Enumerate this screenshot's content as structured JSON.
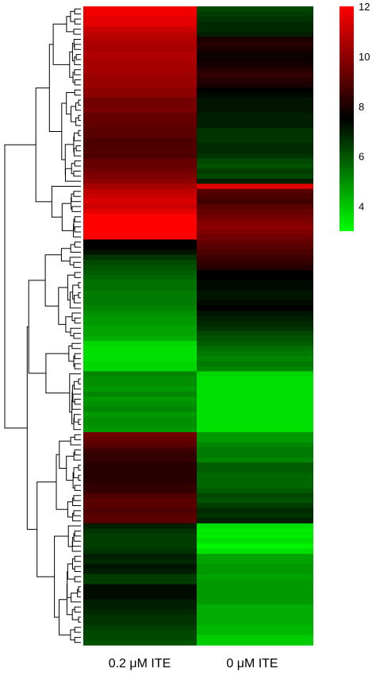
{
  "chart_data": {
    "type": "heatmap",
    "title": "",
    "xlabel": "",
    "ylabel": "",
    "columns": [
      "0.2 μM ITE",
      "0 μM ITE"
    ],
    "row_clustering": "hierarchical dendrogram shown on left",
    "color_scale": {
      "min": 3,
      "max": 12,
      "ticks": [
        4,
        6,
        8,
        10,
        12
      ],
      "low_color": "#00ff00",
      "mid_color": "#000000",
      "high_color": "#ff0000",
      "mid_value": 8
    },
    "rows": [
      [
        11.8,
        6.6
      ],
      [
        11.8,
        6.8
      ],
      [
        11.6,
        7.0
      ],
      [
        11.6,
        7.2
      ],
      [
        11.2,
        7.2
      ],
      [
        11.0,
        7.4
      ],
      [
        10.8,
        8.4
      ],
      [
        10.7,
        8.6
      ],
      [
        10.6,
        8.4
      ],
      [
        10.8,
        8.2
      ],
      [
        10.7,
        8.2
      ],
      [
        10.6,
        8.3
      ],
      [
        10.6,
        8.6
      ],
      [
        10.5,
        8.8
      ],
      [
        10.4,
        8.6
      ],
      [
        10.4,
        8.4
      ],
      [
        10.2,
        8.0
      ],
      [
        10.2,
        7.8
      ],
      [
        9.8,
        7.6
      ],
      [
        9.8,
        7.6
      ],
      [
        9.9,
        7.6
      ],
      [
        9.6,
        7.4
      ],
      [
        9.6,
        7.4
      ],
      [
        9.5,
        7.4
      ],
      [
        9.4,
        7.0
      ],
      [
        9.4,
        7.0
      ],
      [
        9.2,
        7.0
      ],
      [
        9.2,
        7.2
      ],
      [
        9.3,
        7.2
      ],
      [
        9.2,
        7.0
      ],
      [
        9.6,
        6.6
      ],
      [
        9.6,
        6.4
      ],
      [
        9.8,
        6.8
      ],
      [
        10.0,
        6.6
      ],
      [
        10.2,
        7.4
      ],
      [
        10.6,
        11.6
      ],
      [
        11.0,
        9.4
      ],
      [
        11.2,
        9.2
      ],
      [
        11.4,
        9.0
      ],
      [
        11.2,
        9.4
      ],
      [
        11.6,
        9.6
      ],
      [
        12.0,
        9.8
      ],
      [
        12.0,
        10.0
      ],
      [
        12.0,
        10.2
      ],
      [
        12.0,
        10.0
      ],
      [
        12.0,
        9.8
      ],
      [
        8.0,
        9.6
      ],
      [
        8.0,
        9.4
      ],
      [
        7.6,
        9.2
      ],
      [
        7.0,
        9.0
      ],
      [
        6.6,
        8.8
      ],
      [
        6.4,
        8.6
      ],
      [
        6.2,
        8.0
      ],
      [
        6.0,
        8.0
      ],
      [
        5.8,
        7.8
      ],
      [
        5.8,
        7.8
      ],
      [
        5.6,
        7.6
      ],
      [
        5.6,
        7.6
      ],
      [
        5.6,
        7.8
      ],
      [
        5.4,
        8.0
      ],
      [
        5.2,
        7.6
      ],
      [
        5.0,
        7.4
      ],
      [
        5.0,
        7.2
      ],
      [
        4.8,
        7.0
      ],
      [
        4.8,
        6.6
      ],
      [
        4.6,
        6.4
      ],
      [
        3.8,
        6.2
      ],
      [
        3.6,
        5.8
      ],
      [
        3.6,
        5.6
      ],
      [
        3.6,
        5.4
      ],
      [
        3.8,
        5.6
      ],
      [
        3.8,
        5.4
      ],
      [
        5.4,
        3.8
      ],
      [
        5.2,
        3.6
      ],
      [
        5.2,
        3.6
      ],
      [
        5.0,
        3.6
      ],
      [
        5.4,
        3.6
      ],
      [
        5.0,
        3.6
      ],
      [
        5.2,
        3.6
      ],
      [
        5.4,
        3.6
      ],
      [
        5.0,
        3.6
      ],
      [
        5.2,
        3.6
      ],
      [
        5.2,
        3.6
      ],
      [
        5.0,
        3.6
      ],
      [
        9.8,
        5.0
      ],
      [
        9.6,
        5.0
      ],
      [
        9.4,
        5.4
      ],
      [
        9.0,
        5.6
      ],
      [
        8.8,
        5.6
      ],
      [
        8.8,
        5.4
      ],
      [
        8.6,
        6.2
      ],
      [
        8.6,
        6.2
      ],
      [
        8.6,
        6.0
      ],
      [
        8.6,
        6.0
      ],
      [
        8.8,
        6.0
      ],
      [
        8.8,
        6.2
      ],
      [
        9.2,
        6.6
      ],
      [
        9.4,
        6.4
      ],
      [
        9.4,
        6.8
      ],
      [
        9.2,
        7.2
      ],
      [
        9.4,
        7.0
      ],
      [
        9.4,
        7.4
      ],
      [
        7.4,
        3.6
      ],
      [
        7.0,
        3.4
      ],
      [
        6.8,
        3.4
      ],
      [
        6.8,
        3.6
      ],
      [
        6.8,
        3.2
      ],
      [
        7.0,
        3.6
      ],
      [
        7.4,
        4.8
      ],
      [
        7.2,
        4.8
      ],
      [
        7.6,
        5.0
      ],
      [
        7.4,
        5.0
      ],
      [
        6.8,
        4.8
      ],
      [
        6.8,
        5.0
      ],
      [
        7.8,
        5.0
      ],
      [
        7.8,
        5.0
      ],
      [
        7.8,
        5.0
      ],
      [
        7.4,
        5.0
      ],
      [
        7.4,
        4.6
      ],
      [
        7.2,
        4.6
      ],
      [
        7.0,
        4.6
      ],
      [
        7.0,
        4.6
      ],
      [
        6.8,
        4.4
      ],
      [
        6.6,
        4.4
      ],
      [
        6.6,
        4.0
      ],
      [
        6.4,
        4.0
      ]
    ]
  }
}
